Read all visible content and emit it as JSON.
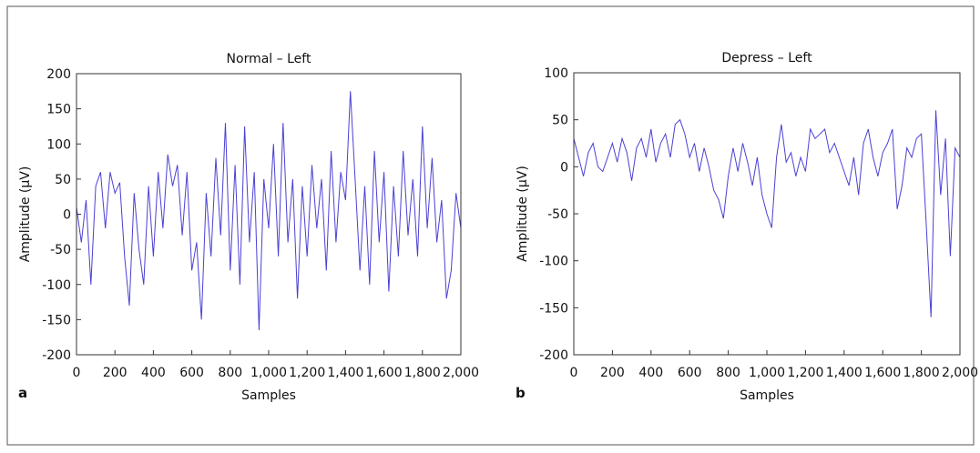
{
  "chart_data": [
    {
      "type": "line",
      "title": "Normal – Left",
      "panel_label": "a",
      "xlabel": "Samples",
      "ylabel": "Amplitude (μV)",
      "xlim": [
        0,
        2000
      ],
      "ylim": [
        -200,
        200
      ],
      "xticks": [
        0,
        200,
        400,
        600,
        800,
        {
          "value": 1000,
          "label": "1,000"
        },
        {
          "value": 1200,
          "label": "1,200"
        },
        {
          "value": 1400,
          "label": "1,400"
        },
        {
          "value": 1600,
          "label": "1,600"
        },
        {
          "value": 1800,
          "label": "1,800"
        },
        {
          "value": 2000,
          "label": "2,000"
        }
      ],
      "yticks": [
        -200,
        -150,
        -100,
        -50,
        0,
        50,
        100,
        150,
        200
      ],
      "x": [
        0,
        25,
        50,
        75,
        100,
        125,
        150,
        175,
        200,
        225,
        250,
        275,
        300,
        325,
        350,
        375,
        400,
        425,
        450,
        475,
        500,
        525,
        550,
        575,
        600,
        625,
        650,
        675,
        700,
        725,
        750,
        775,
        800,
        825,
        850,
        875,
        900,
        925,
        950,
        975,
        1000,
        1025,
        1050,
        1075,
        1100,
        1125,
        1150,
        1175,
        1200,
        1225,
        1250,
        1275,
        1300,
        1325,
        1350,
        1375,
        1400,
        1425,
        1450,
        1475,
        1500,
        1525,
        1550,
        1575,
        1600,
        1625,
        1650,
        1675,
        1700,
        1725,
        1750,
        1775,
        1800,
        1825,
        1850,
        1875,
        1900,
        1925,
        1950,
        1975,
        2000
      ],
      "series": [
        {
          "color": "#4a40d4",
          "values": [
            10,
            -40,
            20,
            -100,
            40,
            60,
            -20,
            60,
            30,
            45,
            -60,
            -130,
            30,
            -50,
            -100,
            40,
            -60,
            60,
            -20,
            85,
            40,
            70,
            -30,
            60,
            -80,
            -40,
            -150,
            30,
            -60,
            80,
            -30,
            130,
            -80,
            70,
            -100,
            125,
            -40,
            60,
            -165,
            50,
            -20,
            100,
            -60,
            130,
            -40,
            50,
            -120,
            40,
            -60,
            70,
            -20,
            50,
            -80,
            90,
            -40,
            60,
            20,
            175,
            50,
            -80,
            40,
            -100,
            90,
            -40,
            60,
            -110,
            40,
            -60,
            90,
            -30,
            50,
            -60,
            125,
            -20,
            80,
            -40,
            20,
            -120,
            -80,
            30,
            -20
          ]
        }
      ]
    },
    {
      "type": "line",
      "title": "Depress – Left",
      "panel_label": "b",
      "xlabel": "Samples",
      "ylabel": "Amplitude (μV)",
      "xlim": [
        0,
        2000
      ],
      "ylim": [
        -200,
        100
      ],
      "xticks": [
        0,
        200,
        400,
        600,
        800,
        {
          "value": 1000,
          "label": "1,000"
        },
        {
          "value": 1200,
          "label": "1,200"
        },
        {
          "value": 1400,
          "label": "1,400"
        },
        {
          "value": 1600,
          "label": "1,600"
        },
        {
          "value": 1800,
          "label": "1,800"
        },
        {
          "value": 2000,
          "label": "2,000"
        }
      ],
      "yticks": [
        -200,
        -150,
        -100,
        -50,
        0,
        50,
        100
      ],
      "x": [
        0,
        25,
        50,
        75,
        100,
        125,
        150,
        175,
        200,
        225,
        250,
        275,
        300,
        325,
        350,
        375,
        400,
        425,
        450,
        475,
        500,
        525,
        550,
        575,
        600,
        625,
        650,
        675,
        700,
        725,
        750,
        775,
        800,
        825,
        850,
        875,
        900,
        925,
        950,
        975,
        1000,
        1025,
        1050,
        1075,
        1100,
        1125,
        1150,
        1175,
        1200,
        1225,
        1250,
        1275,
        1300,
        1325,
        1350,
        1375,
        1400,
        1425,
        1450,
        1475,
        1500,
        1525,
        1550,
        1575,
        1600,
        1625,
        1650,
        1675,
        1700,
        1725,
        1750,
        1775,
        1800,
        1825,
        1850,
        1875,
        1900,
        1925,
        1950,
        1975,
        2000
      ],
      "series": [
        {
          "color": "#4a40d4",
          "values": [
            30,
            10,
            -10,
            15,
            25,
            0,
            -5,
            10,
            25,
            5,
            30,
            15,
            -15,
            20,
            30,
            10,
            40,
            5,
            25,
            35,
            10,
            45,
            50,
            35,
            10,
            25,
            -5,
            20,
            0,
            -25,
            -35,
            -55,
            -10,
            20,
            -5,
            25,
            5,
            -20,
            10,
            -30,
            -50,
            -65,
            10,
            45,
            5,
            15,
            -10,
            10,
            -5,
            40,
            30,
            35,
            40,
            15,
            25,
            10,
            -5,
            -20,
            10,
            -30,
            25,
            40,
            10,
            -10,
            15,
            25,
            40,
            -45,
            -20,
            20,
            10,
            30,
            35,
            -60,
            -160,
            60,
            -30,
            30,
            -95,
            20,
            10
          ]
        }
      ]
    }
  ]
}
